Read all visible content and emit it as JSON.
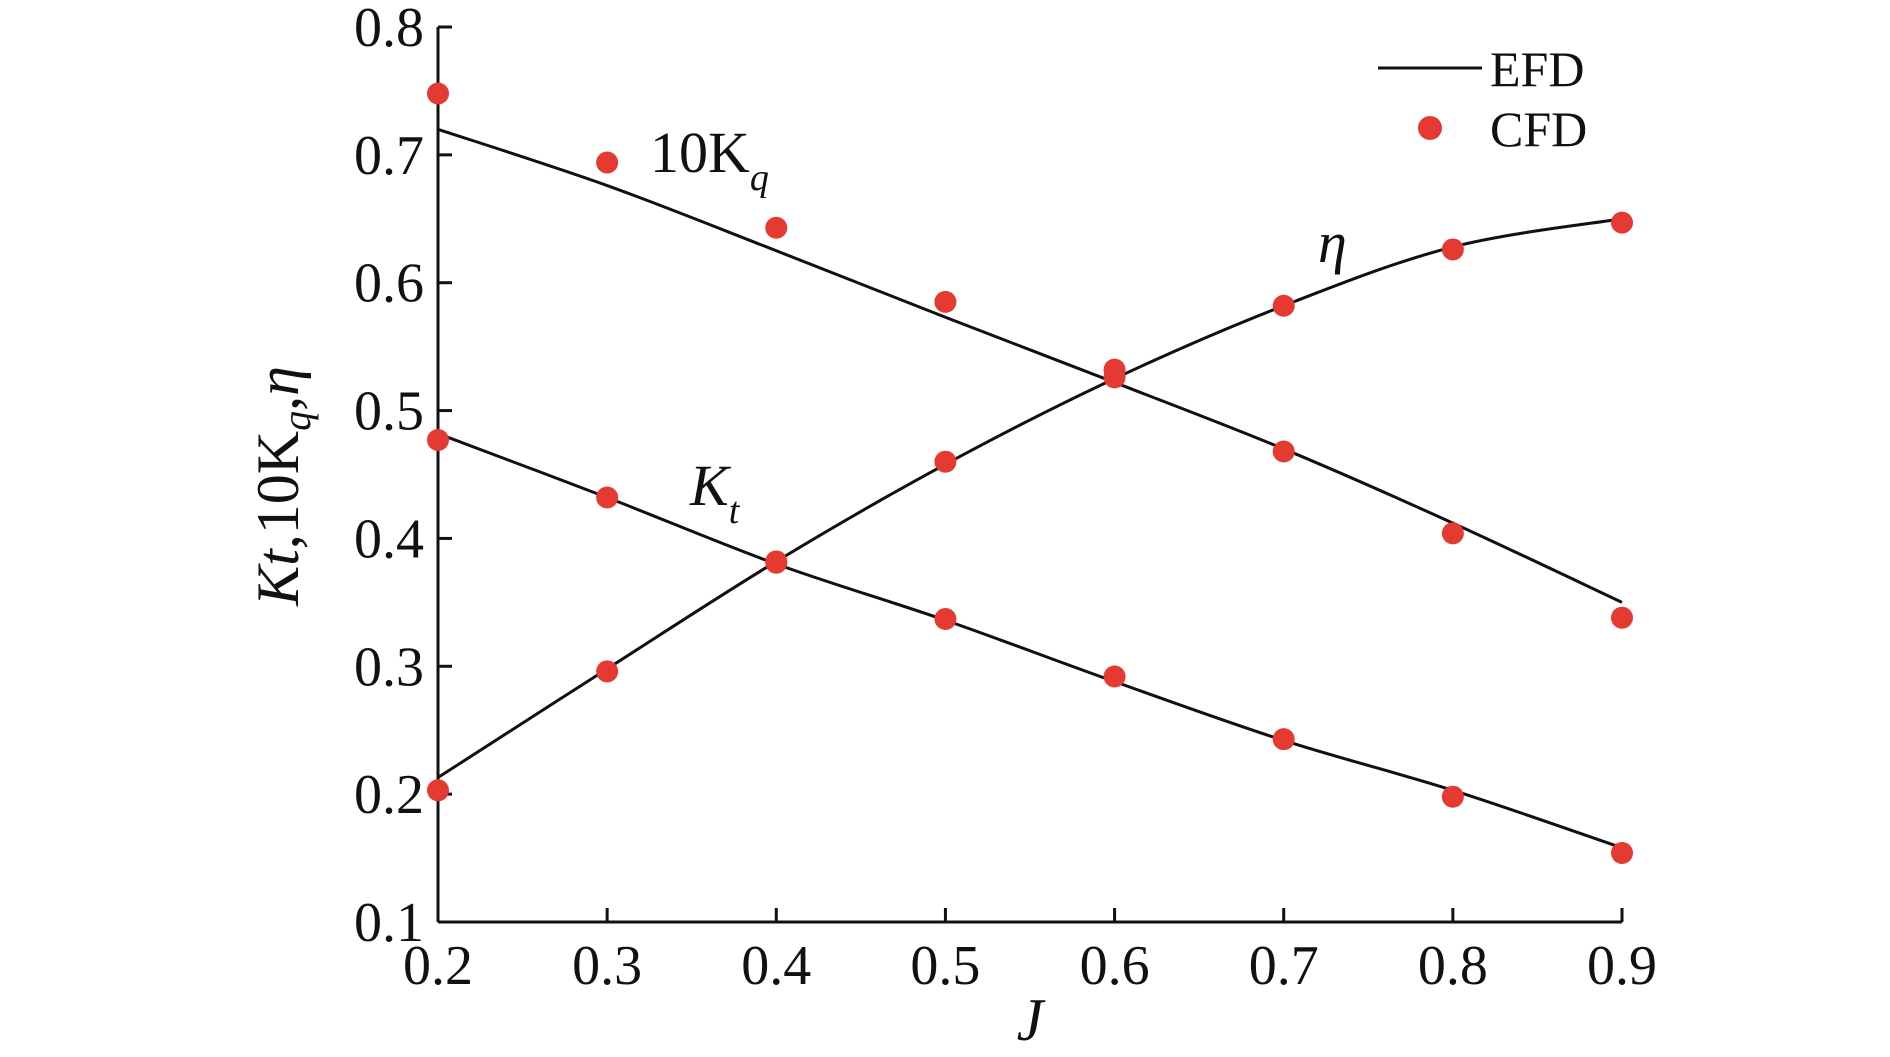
{
  "chart_data": {
    "type": "line",
    "xlabel": "J",
    "ylabel": "Kt,10Kq,η",
    "xlim": [
      0.2,
      0.9
    ],
    "ylim": [
      0.1,
      0.8
    ],
    "x_ticks": [
      "0.2",
      "0.3",
      "0.4",
      "0.5",
      "0.6",
      "0.7",
      "0.8",
      "0.9"
    ],
    "y_ticks": [
      "0.1",
      "0.2",
      "0.3",
      "0.4",
      "0.5",
      "0.6",
      "0.7",
      "0.8"
    ],
    "grid": false,
    "legend": {
      "position": "top-right",
      "entries": [
        {
          "label": "EFD",
          "style": "line"
        },
        {
          "label": "CFD",
          "style": "marker"
        }
      ]
    },
    "curve_labels": [
      {
        "series": "10Kq",
        "base": "10K",
        "subscript": "q"
      },
      {
        "series": "Kt",
        "base": "K",
        "subscript": "t"
      },
      {
        "series": "eta",
        "text": "η"
      }
    ],
    "series": [
      {
        "key": "10Kq",
        "efd": {
          "x": [
            0.2,
            0.3,
            0.4,
            0.5,
            0.6,
            0.7,
            0.8,
            0.9
          ],
          "y": [
            0.72,
            0.676,
            0.625,
            0.573,
            0.522,
            0.47,
            0.412,
            0.35
          ]
        },
        "cfd": {
          "x": [
            0.2,
            0.3,
            0.4,
            0.5,
            0.6,
            0.7,
            0.8,
            0.9
          ],
          "y": [
            0.748,
            0.694,
            0.643,
            0.585,
            0.526,
            0.468,
            0.404,
            0.338
          ]
        }
      },
      {
        "key": "Kt",
        "efd": {
          "x": [
            0.2,
            0.3,
            0.4,
            0.5,
            0.6,
            0.7,
            0.8,
            0.9
          ],
          "y": [
            0.482,
            0.432,
            0.38,
            0.336,
            0.288,
            0.242,
            0.203,
            0.158
          ]
        },
        "cfd": {
          "x": [
            0.2,
            0.3,
            0.4,
            0.5,
            0.6,
            0.7,
            0.8,
            0.9
          ],
          "y": [
            0.477,
            0.432,
            0.381,
            0.337,
            0.292,
            0.243,
            0.198,
            0.154
          ]
        }
      },
      {
        "key": "eta",
        "efd": {
          "x": [
            0.2,
            0.3,
            0.4,
            0.5,
            0.6,
            0.7,
            0.8,
            0.9
          ],
          "y": [
            0.213,
            0.298,
            0.382,
            0.458,
            0.525,
            0.582,
            0.628,
            0.65
          ]
        },
        "cfd": {
          "x": [
            0.2,
            0.3,
            0.4,
            0.5,
            0.6,
            0.7,
            0.8,
            0.9
          ],
          "y": [
            0.203,
            0.296,
            0.382,
            0.46,
            0.532,
            0.582,
            0.626,
            0.647
          ]
        }
      }
    ],
    "colors": {
      "efd_line": "#111111",
      "cfd_marker": "#e53a32",
      "axis": "#111111"
    }
  }
}
